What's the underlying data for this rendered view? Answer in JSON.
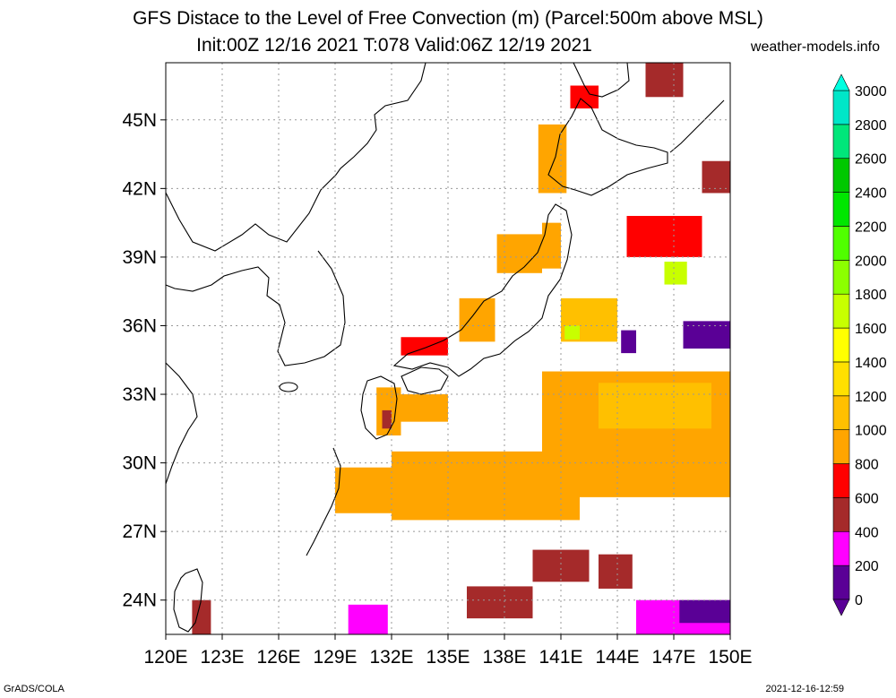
{
  "title_line1": "GFS Distace to the Level of Free Convection (m) (Parcel:500m above MSL)",
  "title_line2": "Init:00Z 12/16 2021 T:078 Valid:06Z 12/19 2021",
  "site": "weather-models.info",
  "footer_left": "GrADS/COLA",
  "footer_right": "2021-12-16-12:59",
  "lat_labels": [
    "45N",
    "42N",
    "39N",
    "36N",
    "33N",
    "30N",
    "27N",
    "24N"
  ],
  "lat_values": [
    45,
    42,
    39,
    36,
    33,
    30,
    27,
    24
  ],
  "lon_labels": [
    "120E",
    "123E",
    "126E",
    "129E",
    "132E",
    "135E",
    "138E",
    "141E",
    "144E",
    "147E",
    "150E"
  ],
  "lon_values": [
    120,
    123,
    126,
    129,
    132,
    135,
    138,
    141,
    144,
    147,
    150
  ],
  "map_extent": {
    "lon": [
      120,
      150
    ],
    "lat": [
      22.5,
      47.5
    ]
  },
  "colorbar": {
    "labels": [
      "0",
      "200",
      "400",
      "600",
      "800",
      "1000",
      "1200",
      "1400",
      "1600",
      "1800",
      "2000",
      "2200",
      "2400",
      "2600",
      "2800",
      "3000"
    ],
    "values": [
      0,
      200,
      400,
      600,
      800,
      1000,
      1200,
      1400,
      1600,
      1800,
      2000,
      2200,
      2400,
      2600,
      2800,
      3000
    ],
    "colors": [
      "#5a0096",
      "#ff00ff",
      "#a52a2a",
      "#ff0000",
      "#ffa500",
      "#ffc000",
      "#ffe000",
      "#ffff00",
      "#c8ff00",
      "#8cff00",
      "#50ff00",
      "#00e600",
      "#00c800",
      "#00e67a",
      "#00e6c8",
      "#00ffe0"
    ]
  },
  "field_regions": [
    {
      "lon": [
        129,
        133
      ],
      "lat": [
        27.8,
        29.8
      ],
      "value": 900
    },
    {
      "lon": [
        132,
        142
      ],
      "lat": [
        27.5,
        30.5
      ],
      "value": 900
    },
    {
      "lon": [
        140,
        150
      ],
      "lat": [
        28.5,
        34
      ],
      "value": 950
    },
    {
      "lon": [
        143,
        149
      ],
      "lat": [
        31.5,
        33.5
      ],
      "value": 1100
    },
    {
      "lon": [
        141,
        144
      ],
      "lat": [
        35.3,
        37.2
      ],
      "value": 1000
    },
    {
      "lon": [
        141.2,
        142
      ],
      "lat": [
        35.4,
        36
      ],
      "value": 1600
    },
    {
      "lon": [
        131.2,
        132.5
      ],
      "lat": [
        31.2,
        33.3
      ],
      "value": 900
    },
    {
      "lon": [
        131.5,
        132
      ],
      "lat": [
        31.5,
        32.3
      ],
      "value": 500
    },
    {
      "lon": [
        132.5,
        135
      ],
      "lat": [
        31.8,
        33
      ],
      "value": 850
    },
    {
      "lon": [
        132.5,
        135
      ],
      "lat": [
        34.7,
        35.5
      ],
      "value": 700
    },
    {
      "lon": [
        135.6,
        137.5
      ],
      "lat": [
        35.3,
        37.2
      ],
      "value": 800
    },
    {
      "lon": [
        137.6,
        140
      ],
      "lat": [
        38.3,
        40
      ],
      "value": 800
    },
    {
      "lon": [
        140,
        141
      ],
      "lat": [
        38.5,
        40.5
      ],
      "value": 900
    },
    {
      "lon": [
        139.8,
        141.3
      ],
      "lat": [
        41.8,
        44.8
      ],
      "value": 800
    },
    {
      "lon": [
        141.5,
        143
      ],
      "lat": [
        45.5,
        46.5
      ],
      "value": 600
    },
    {
      "lon": [
        145.5,
        147.5
      ],
      "lat": [
        46,
        47.5
      ],
      "value": 500
    },
    {
      "lon": [
        148.5,
        150
      ],
      "lat": [
        41.8,
        43.2
      ],
      "value": 500
    },
    {
      "lon": [
        144.5,
        148.5
      ],
      "lat": [
        39,
        40.8
      ],
      "value": 700
    },
    {
      "lon": [
        146.5,
        147.7
      ],
      "lat": [
        37.8,
        38.8
      ],
      "value": 1700
    },
    {
      "lon": [
        147.5,
        150
      ],
      "lat": [
        35,
        36.2
      ],
      "value": 150
    },
    {
      "lon": [
        144.2,
        145
      ],
      "lat": [
        34.8,
        35.8
      ],
      "value": 150
    },
    {
      "lon": [
        139.5,
        142.5
      ],
      "lat": [
        24.8,
        26.2
      ],
      "value": 500
    },
    {
      "lon": [
        136,
        139.5
      ],
      "lat": [
        23.2,
        24.6
      ],
      "value": 500
    },
    {
      "lon": [
        143,
        144.8
      ],
      "lat": [
        24.5,
        26
      ],
      "value": 500
    },
    {
      "lon": [
        129.7,
        131.8
      ],
      "lat": [
        22.5,
        23.8
      ],
      "value": 300
    },
    {
      "lon": [
        121.4,
        122.4
      ],
      "lat": [
        22.5,
        24
      ],
      "value": 500
    },
    {
      "lon": [
        145,
        150
      ],
      "lat": [
        22.5,
        24
      ],
      "value": 300
    },
    {
      "lon": [
        147.3,
        150
      ],
      "lat": [
        23,
        24
      ],
      "value": 100
    }
  ]
}
